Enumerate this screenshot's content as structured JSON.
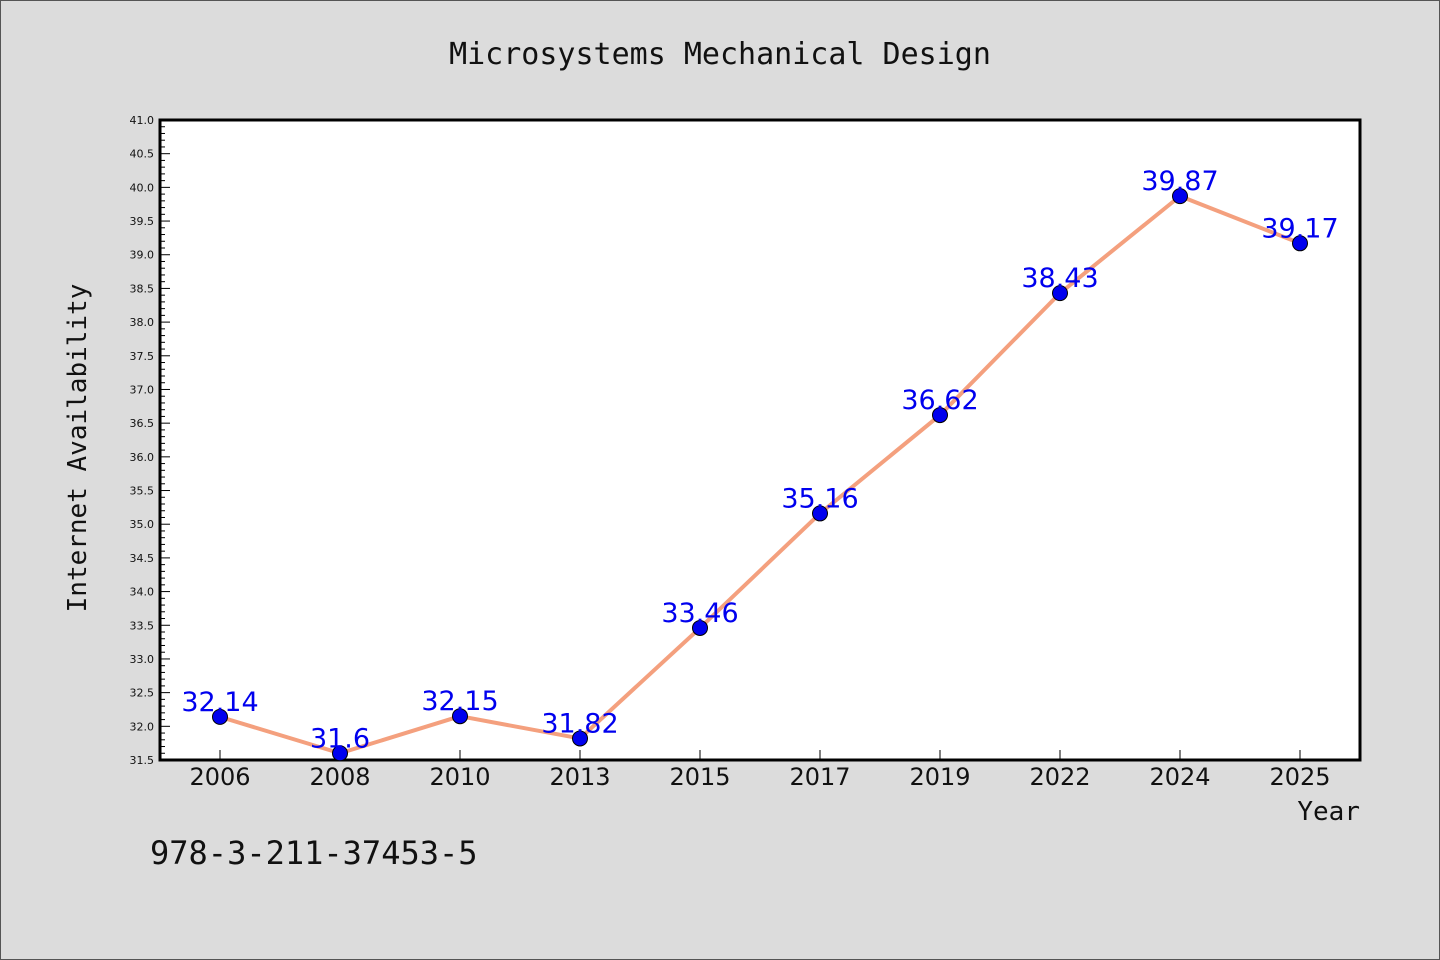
{
  "chart_data": {
    "type": "line",
    "title": "Microsystems Mechanical Design",
    "xlabel": "Year",
    "ylabel": "Internet Availability",
    "categories": [
      "2006",
      "2008",
      "2010",
      "2013",
      "2015",
      "2017",
      "2019",
      "2022",
      "2024",
      "2025"
    ],
    "values": [
      32.14,
      31.6,
      32.15,
      31.82,
      33.46,
      35.16,
      36.62,
      38.43,
      39.87,
      39.17
    ],
    "data_labels": [
      "32.14",
      "31.6",
      "32.15",
      "31.82",
      "33.46",
      "35.16",
      "36.62",
      "38.43",
      "39.87",
      "39.17"
    ],
    "ylim": [
      31.5,
      41.0
    ],
    "ytick_step": 0.5,
    "ytick_minor_step": 0.1,
    "grid": false,
    "line_color": "#f4a07e",
    "marker_color": "#0000ee",
    "label_color": "#0000ee"
  },
  "footer": {
    "isbn": "978-3-211-37453-5"
  }
}
